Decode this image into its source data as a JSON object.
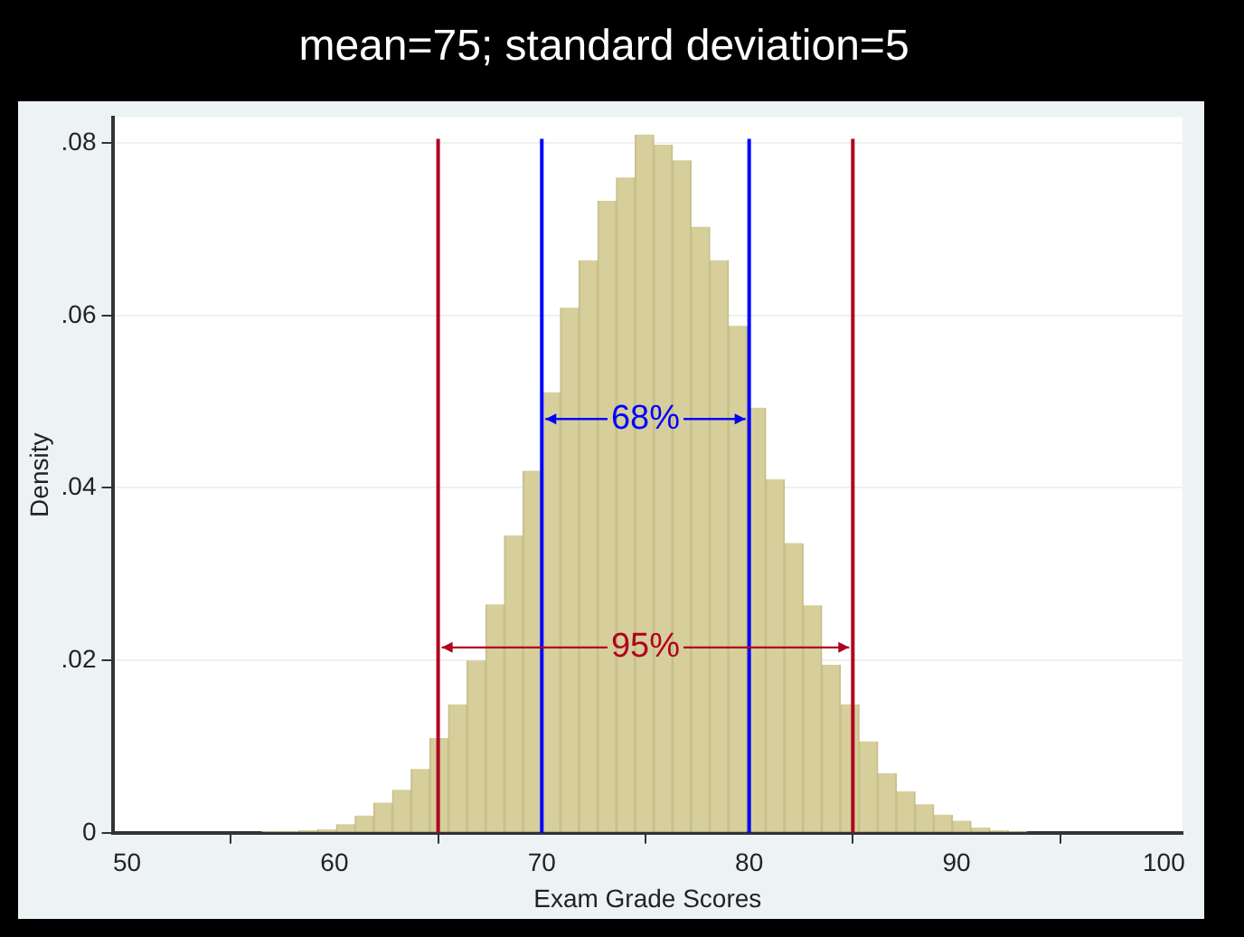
{
  "chart_data": {
    "type": "histogram",
    "title": "mean=75; standard deviation=5",
    "xlabel": "Exam Grade Scores",
    "ylabel": "Density",
    "bins": [
      53.8,
      54.7,
      55.6,
      56.5,
      57.4,
      58.3,
      59.2,
      60.1,
      61.0,
      61.9,
      62.8,
      63.7,
      64.6,
      65.5,
      66.4,
      67.3,
      68.2,
      69.1,
      70.0,
      70.9,
      71.8,
      72.7,
      73.6,
      74.5,
      75.4,
      76.3,
      77.2,
      78.1,
      79.0,
      79.9,
      80.8,
      81.7,
      82.6,
      83.5,
      84.4,
      85.3,
      86.2,
      87.1,
      88.0,
      88.9,
      89.8,
      90.7,
      91.6,
      92.5,
      93.4,
      94.3,
      95.2
    ],
    "values": [
      0,
      0.0001,
      0.0001,
      0.0002,
      0.0002,
      0.0003,
      0.0004,
      0.001,
      0.002,
      0.0035,
      0.005,
      0.0074,
      0.011,
      0.0149,
      0.02,
      0.0265,
      0.0345,
      0.042,
      0.0511,
      0.0609,
      0.0664,
      0.0733,
      0.076,
      0.081,
      0.0798,
      0.078,
      0.0703,
      0.0664,
      0.0588,
      0.0493,
      0.041,
      0.0336,
      0.0264,
      0.0195,
      0.0149,
      0.0106,
      0.0069,
      0.0048,
      0.0033,
      0.0021,
      0.0014,
      0.0006,
      0.0003,
      0.0002,
      0.0001,
      0.0001
    ],
    "color": "#d6cf9c",
    "xlim": [
      49.3,
      100.9
    ],
    "xticks": [
      50,
      60,
      70,
      80,
      90,
      100
    ],
    "ylim": [
      0,
      0.083
    ],
    "yticks": [
      0,
      {
        "value": 0.02,
        "label": ".02"
      },
      {
        "value": 0.04,
        "label": ".04"
      },
      {
        "value": 0.06,
        "label": ".06"
      },
      {
        "value": 0.08,
        "label": ".08"
      }
    ],
    "grid": "y",
    "legend": false,
    "ref_lines": [
      {
        "axis": "x",
        "value": 65,
        "color": "#b00020"
      },
      {
        "axis": "x",
        "value": 70,
        "color": "#0000ff"
      },
      {
        "axis": "x",
        "value": 80,
        "color": "#0000ff"
      },
      {
        "axis": "x",
        "value": 85,
        "color": "#b00020"
      }
    ],
    "annotations": [
      {
        "text": "68%",
        "x": 75,
        "y": 0.048
      },
      {
        "text": "95%",
        "x": 75,
        "y": 0.0215
      }
    ]
  }
}
